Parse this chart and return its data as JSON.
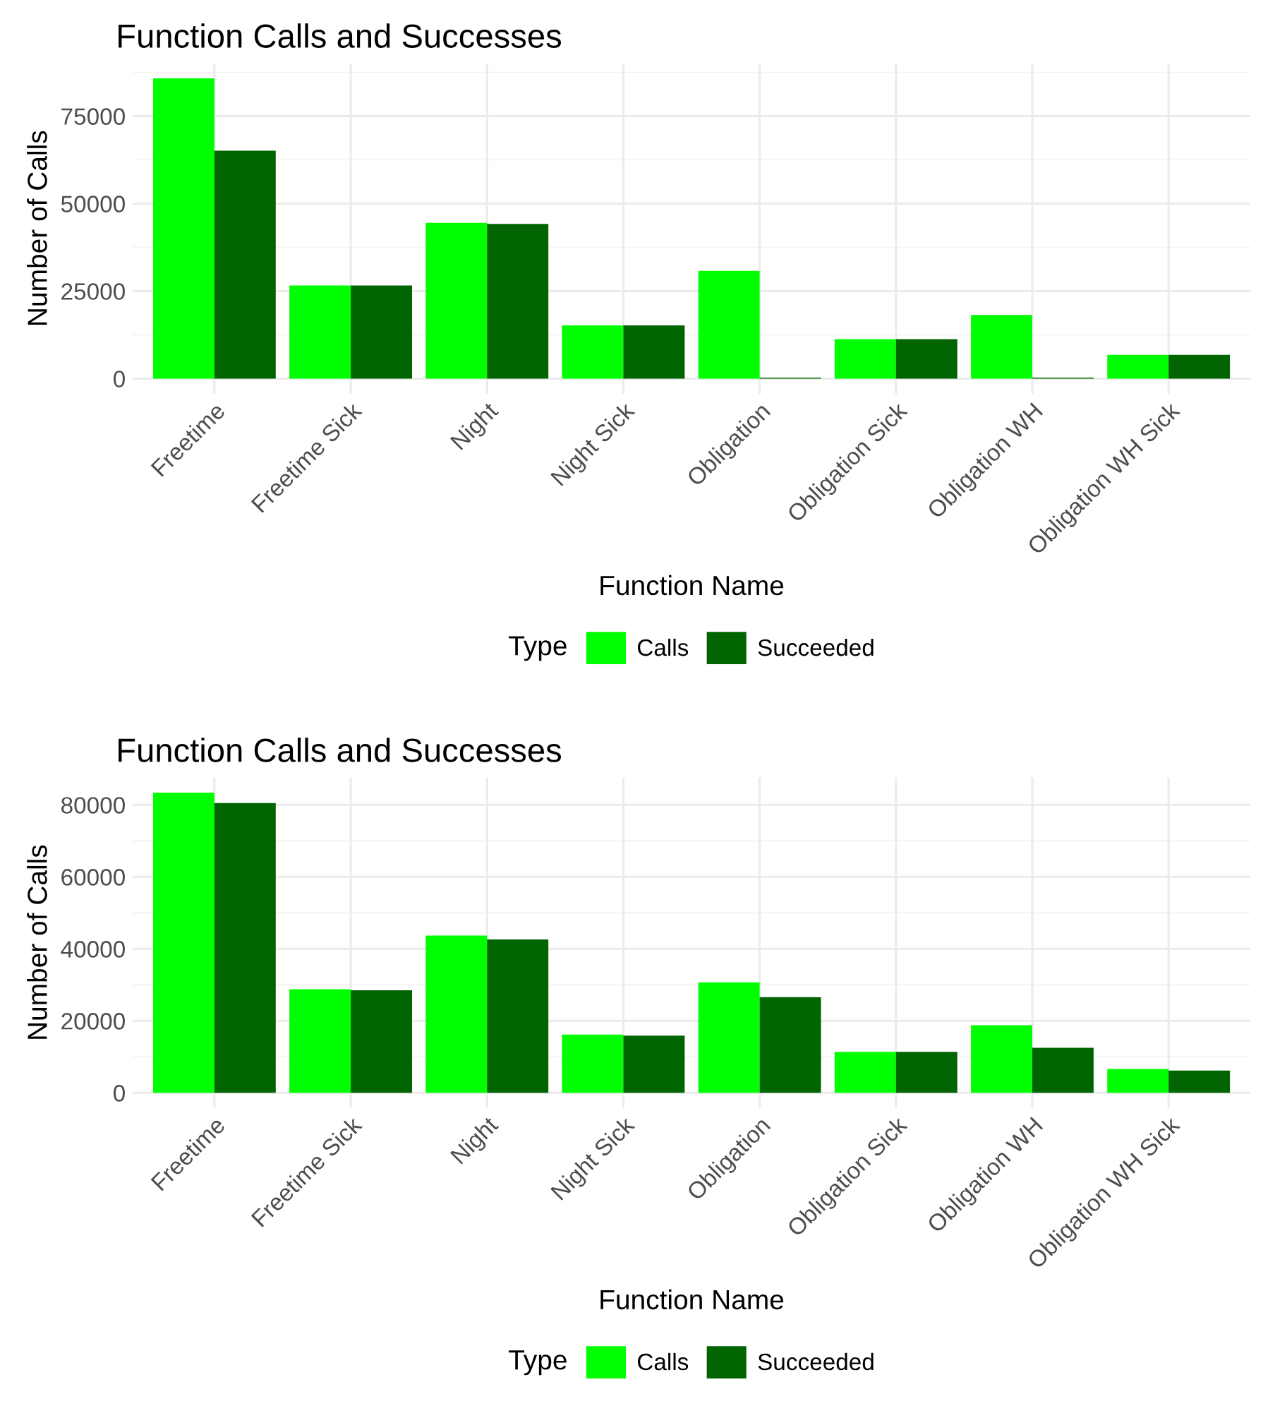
{
  "chart_data": [
    {
      "type": "bar",
      "title": "Function Calls and Successes",
      "xlabel": "Function Name",
      "ylabel": "Number of Calls",
      "legend_title": "Type",
      "legend": "bottom",
      "grid": true,
      "categories": [
        "Freetime",
        "Freetime Sick",
        "Night",
        "Night Sick",
        "Obligation",
        "Obligation Sick",
        "Obligation WH",
        "Obligation WH Sick"
      ],
      "series": [
        {
          "name": "Calls",
          "color": "#00ff00",
          "values": [
            85800,
            26600,
            44500,
            15200,
            30800,
            11300,
            18200,
            6800
          ]
        },
        {
          "name": "Succeeded",
          "color": "#006400",
          "values": [
            65100,
            26600,
            44200,
            15200,
            300,
            11300,
            300,
            6800
          ]
        }
      ],
      "ylim": [
        -4300,
        90100
      ],
      "yticks": [
        0,
        25000,
        50000,
        75000
      ]
    },
    {
      "type": "bar",
      "title": "Function Calls and Successes",
      "xlabel": "Function Name",
      "ylabel": "Number of Calls",
      "legend_title": "Type",
      "legend": "bottom",
      "grid": true,
      "categories": [
        "Freetime",
        "Freetime Sick",
        "Night",
        "Night Sick",
        "Obligation",
        "Obligation Sick",
        "Obligation WH",
        "Obligation WH Sick"
      ],
      "series": [
        {
          "name": "Calls",
          "color": "#00ff00",
          "values": [
            83400,
            28800,
            43700,
            16200,
            30700,
            11400,
            18800,
            6600
          ]
        },
        {
          "name": "Succeeded",
          "color": "#006400",
          "values": [
            80500,
            28500,
            42600,
            15900,
            26600,
            11400,
            12500,
            6200
          ]
        }
      ],
      "ylim": [
        -4200,
        87600
      ],
      "yticks": [
        0,
        20000,
        40000,
        60000,
        80000
      ]
    }
  ]
}
